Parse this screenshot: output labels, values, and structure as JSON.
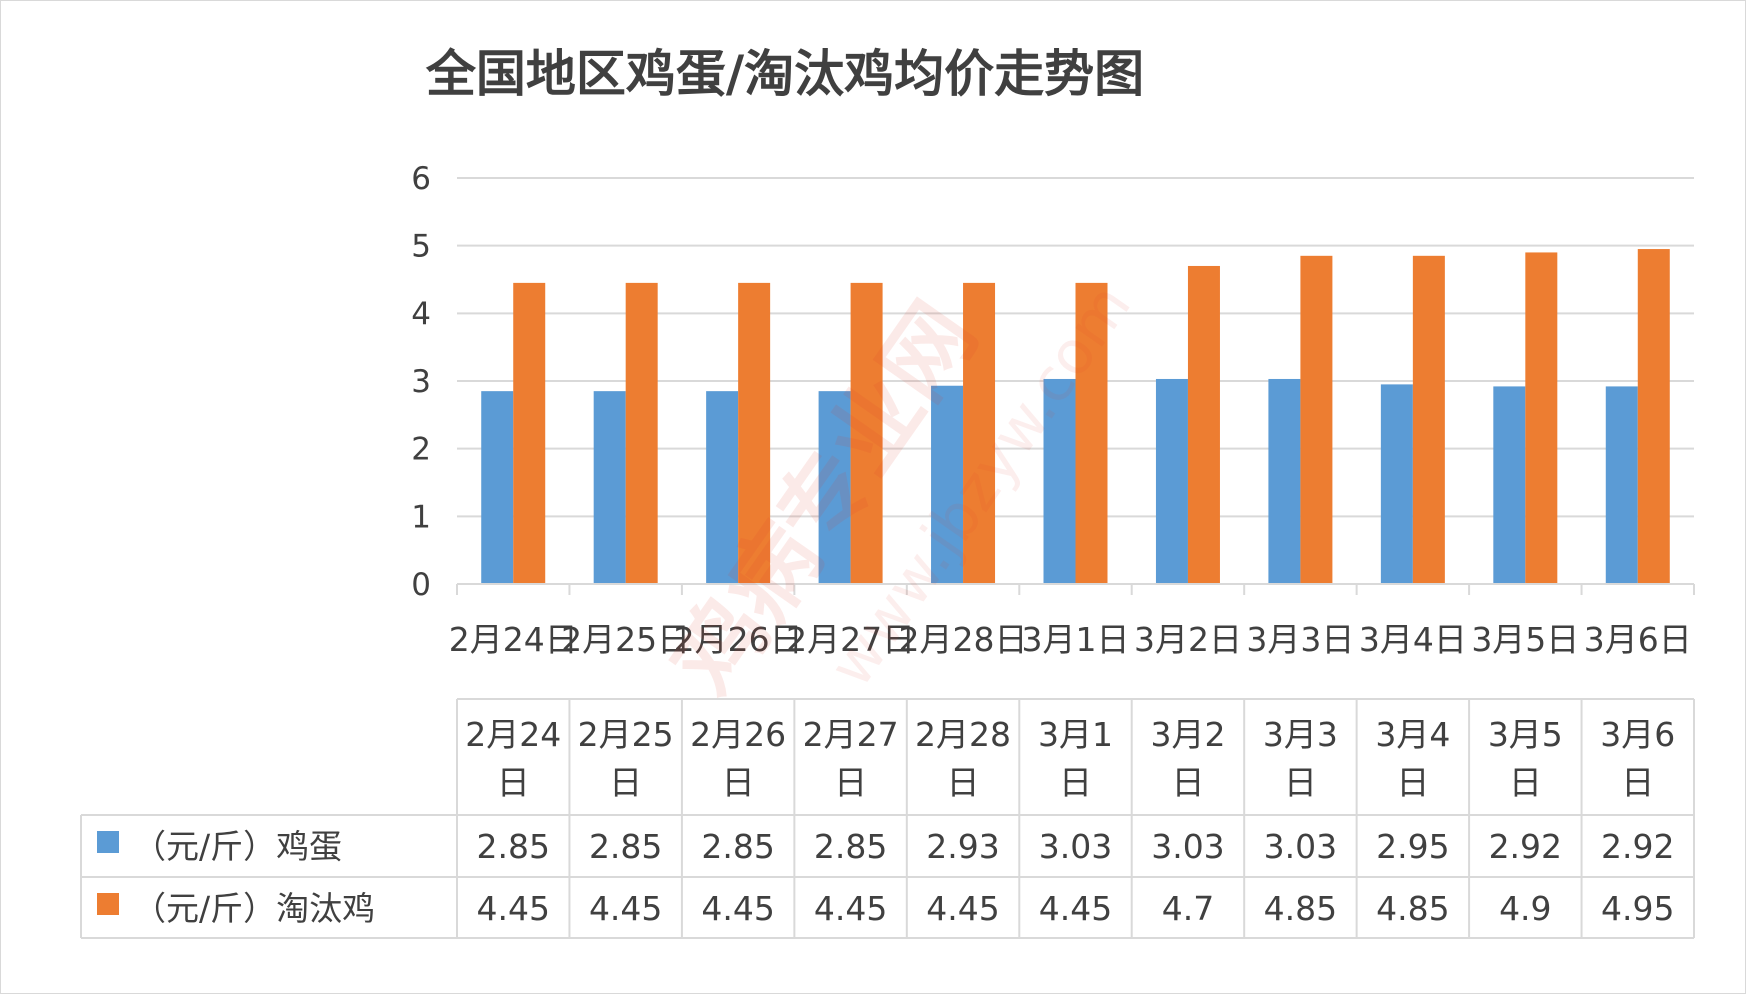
{
  "chart_data": {
    "type": "bar",
    "title": "全国地区鸡蛋/淘汰鸡均价走势图",
    "categories": [
      "2月24日",
      "2月25日",
      "2月26日",
      "2月27日",
      "2月28日",
      "3月1日",
      "3月2日",
      "3月3日",
      "3月4日",
      "3月5日",
      "3月6日"
    ],
    "table_headers": [
      [
        "2月24",
        "日"
      ],
      [
        "2月25",
        "日"
      ],
      [
        "2月26",
        "日"
      ],
      [
        "2月27",
        "日"
      ],
      [
        "2月28",
        "日"
      ],
      [
        "3月1",
        "日"
      ],
      [
        "3月2",
        "日"
      ],
      [
        "3月3",
        "日"
      ],
      [
        "3月4",
        "日"
      ],
      [
        "3月5",
        "日"
      ],
      [
        "3月6",
        "日"
      ]
    ],
    "series": [
      {
        "name": "（元/斤）鸡蛋",
        "color": "#5b9bd5",
        "values": [
          2.85,
          2.85,
          2.85,
          2.85,
          2.93,
          3.03,
          3.03,
          3.03,
          2.95,
          2.92,
          2.92
        ]
      },
      {
        "name": "（元/斤）淘汰鸡",
        "color": "#ed7d31",
        "values": [
          4.45,
          4.45,
          4.45,
          4.45,
          4.45,
          4.45,
          4.7,
          4.85,
          4.85,
          4.9,
          4.95
        ]
      }
    ],
    "ylim": [
      0,
      6
    ],
    "yticks": [
      0,
      1,
      2,
      3,
      4,
      5,
      6
    ],
    "grid": true,
    "legend": "data-table"
  },
  "watermark": {
    "text": "鸡病专业网",
    "url": "www.jbzyw.com"
  }
}
